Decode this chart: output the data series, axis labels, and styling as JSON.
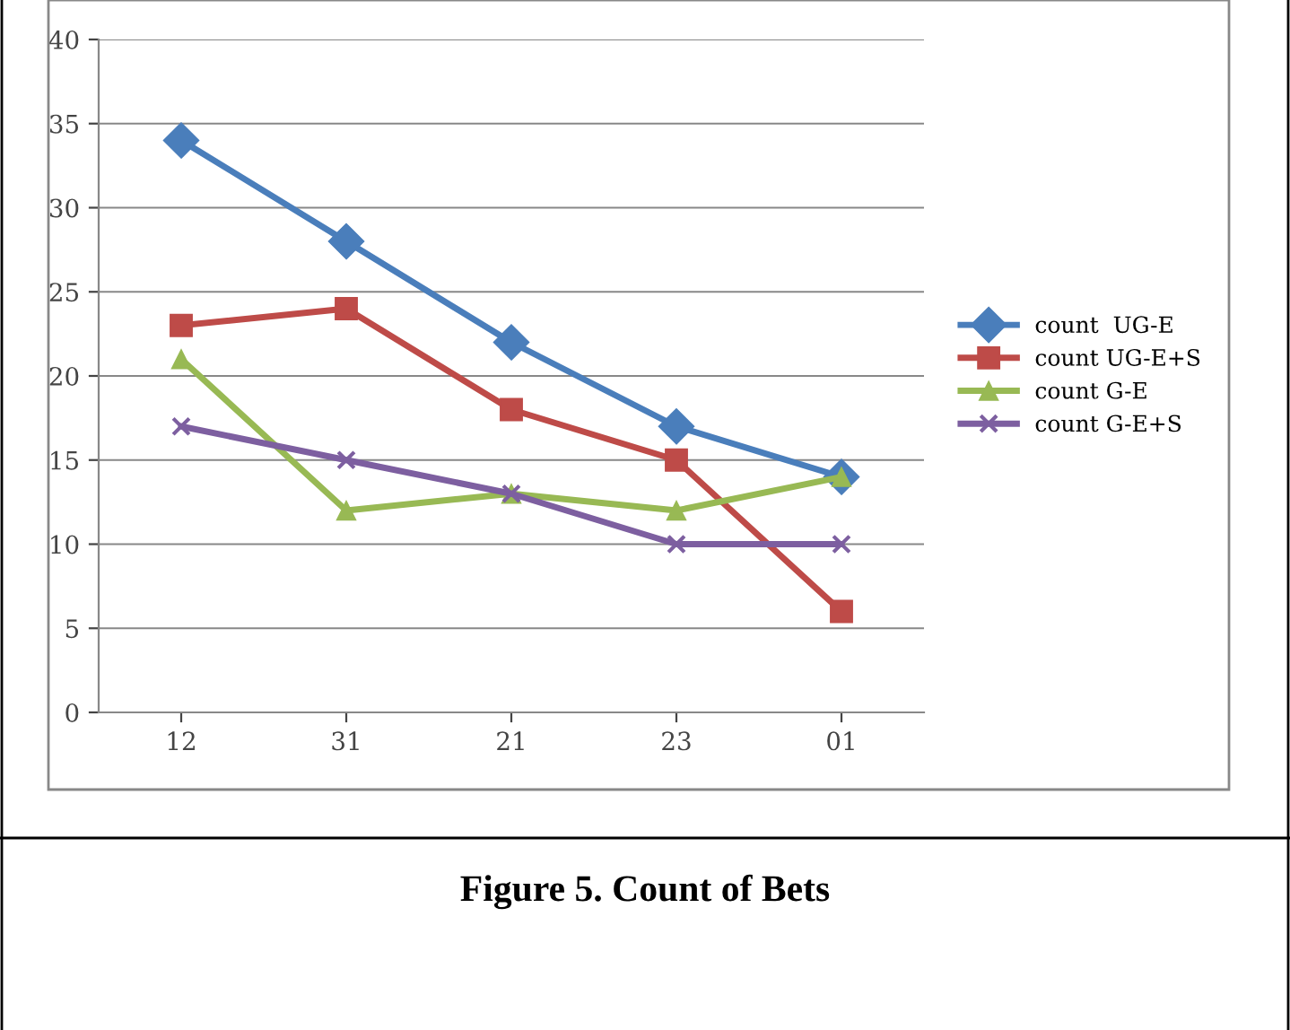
{
  "chart_data": {
    "type": "line",
    "title": "Figure 5. Count of Bets",
    "categories": [
      "12",
      "31",
      "21",
      "23",
      "01"
    ],
    "series": [
      {
        "name": "count  UG-E",
        "color": "#4a7ebb",
        "marker": "diamond",
        "values": [
          34,
          28,
          22,
          17,
          14
        ]
      },
      {
        "name": "count UG-E+S",
        "color": "#be4b48",
        "marker": "square",
        "values": [
          23,
          24,
          18,
          15,
          6
        ]
      },
      {
        "name": "count G-E",
        "color": "#98b954",
        "marker": "triangle",
        "values": [
          21,
          12,
          13,
          12,
          14
        ]
      },
      {
        "name": "count G-E+S",
        "color": "#7d5fa0",
        "marker": "cross",
        "values": [
          17,
          15,
          13,
          10,
          10
        ]
      }
    ],
    "ylim": [
      0,
      40
    ],
    "yticks": [
      0,
      5,
      10,
      15,
      20,
      25,
      30,
      35,
      40
    ],
    "grid": "y",
    "legend": "right",
    "line_style": "solid"
  }
}
